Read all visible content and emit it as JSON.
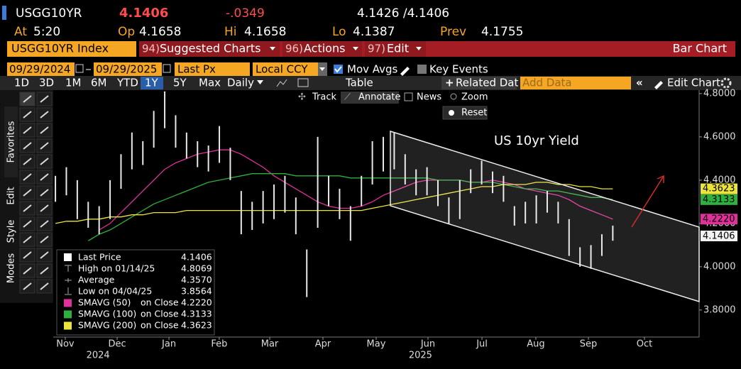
{
  "header": {
    "ticker": "USGG10YR",
    "last": "4.1406",
    "change": "-.0349",
    "bid_ask": "4.1426 /4.1406",
    "quote": [
      {
        "label": "At",
        "value": "5:20"
      },
      {
        "label": "Op",
        "value": "4.1658"
      },
      {
        "label": "Hi",
        "value": "4.1658"
      },
      {
        "label": "Lo",
        "value": "4.1387"
      },
      {
        "label": "Prev",
        "value": "4.1755"
      }
    ]
  },
  "menu": {
    "security": "USGG10YR Index",
    "items": [
      {
        "num": "94)",
        "label": "Suggested Charts"
      },
      {
        "num": "96)",
        "label": "Actions"
      },
      {
        "num": "97)",
        "label": "Edit"
      }
    ],
    "chart_type": "Bar Chart"
  },
  "controls": {
    "start_date": "09/29/2024",
    "end_date": "09/29/2025",
    "field": "Last Px",
    "currency": "Local CCY",
    "mov_avgs": "Mov Avgs",
    "key_events": "Key Events"
  },
  "toolbar": {
    "ranges": [
      "1D",
      "3D",
      "1M",
      "6M",
      "YTD",
      "1Y",
      "5Y",
      "Max"
    ],
    "active": 5,
    "period": "Daily",
    "table": "Table",
    "related": "Related Dat",
    "add_data": "Add Data",
    "edit_chart": "Edit Chart"
  },
  "chart_tools": {
    "track": "Track",
    "annotate": "Annotate",
    "news": "News",
    "zoom": "Zoom",
    "reset": "Reset"
  },
  "side_tabs": [
    "Favorites",
    "Edit",
    "Style",
    "Modes"
  ],
  "chart_data": {
    "type": "ohlc",
    "annotation": "US 10yr Yield",
    "color": "#e8e8e8",
    "x": [
      0,
      1,
      2,
      3,
      4,
      5,
      6,
      7,
      8,
      9,
      10,
      11,
      12,
      13,
      14,
      15,
      16,
      17,
      18,
      19,
      20,
      21,
      22,
      23,
      24,
      25,
      26,
      27,
      28,
      29,
      30,
      31,
      32,
      33,
      34,
      35,
      36,
      37,
      38,
      39,
      40,
      41,
      42,
      43,
      44,
      45,
      46,
      47,
      48,
      49,
      50,
      51
    ],
    "high": [
      4.42,
      4.46,
      4.4,
      4.3,
      4.28,
      4.4,
      4.52,
      4.62,
      4.58,
      4.72,
      4.81,
      4.7,
      4.62,
      4.58,
      4.56,
      4.65,
      4.55,
      4.35,
      4.3,
      4.35,
      4.38,
      4.42,
      4.32,
      4.08,
      4.6,
      4.42,
      4.36,
      4.28,
      4.42,
      4.58,
      4.6,
      4.62,
      4.52,
      4.45,
      4.46,
      4.4,
      4.32,
      4.4,
      4.45,
      4.49,
      4.44,
      4.42,
      4.28,
      4.3,
      4.33,
      4.35,
      4.3,
      4.22,
      4.09,
      4.1,
      4.15,
      4.19
    ],
    "low": [
      4.3,
      4.33,
      4.22,
      4.18,
      4.15,
      4.22,
      4.36,
      4.45,
      4.47,
      4.55,
      4.64,
      4.55,
      4.5,
      4.46,
      4.44,
      4.48,
      4.4,
      4.15,
      4.17,
      4.2,
      4.22,
      4.25,
      4.15,
      3.86,
      4.18,
      4.28,
      4.22,
      4.12,
      4.28,
      4.38,
      4.44,
      4.45,
      4.38,
      4.33,
      4.33,
      4.28,
      4.2,
      4.22,
      4.34,
      4.38,
      4.34,
      4.3,
      4.19,
      4.2,
      4.2,
      4.25,
      4.2,
      4.05,
      4.0,
      3.99,
      4.05,
      4.12
    ],
    "series": [
      {
        "name": "SMAVG (50)",
        "field": "on Close",
        "last": "4.2220",
        "color": "#e0309a",
        "values": [
          null,
          null,
          null,
          null,
          4.17,
          4.2,
          4.25,
          4.3,
          4.35,
          4.4,
          4.45,
          4.48,
          4.5,
          4.52,
          4.53,
          4.54,
          4.54,
          4.52,
          4.49,
          4.46,
          4.42,
          4.39,
          4.36,
          4.33,
          4.3,
          4.28,
          4.27,
          4.27,
          4.28,
          4.3,
          4.33,
          4.35,
          4.37,
          4.39,
          4.4,
          4.4,
          4.4,
          4.4,
          4.39,
          4.39,
          4.4,
          4.39,
          4.38,
          4.36,
          4.35,
          4.34,
          4.33,
          4.31,
          4.28,
          4.26,
          4.24,
          4.22
        ]
      },
      {
        "name": "SMAVG (100)",
        "field": "on Close",
        "last": "4.3133",
        "color": "#2eb03e",
        "values": [
          null,
          null,
          null,
          4.12,
          4.15,
          4.17,
          4.2,
          4.23,
          4.26,
          4.29,
          4.31,
          4.33,
          4.35,
          4.37,
          4.39,
          4.4,
          4.41,
          4.42,
          4.43,
          4.43,
          4.43,
          4.43,
          4.42,
          4.42,
          4.42,
          4.42,
          4.42,
          4.41,
          4.41,
          4.41,
          4.41,
          4.41,
          4.41,
          4.41,
          4.41,
          4.4,
          4.4,
          4.4,
          4.39,
          4.39,
          4.39,
          4.38,
          4.37,
          4.36,
          4.36,
          4.35,
          4.35,
          4.34,
          4.33,
          4.32,
          4.32,
          4.31
        ]
      },
      {
        "name": "SMAVG (200)",
        "field": "on Close",
        "last": "4.3623",
        "color": "#ece43a",
        "values": [
          4.2,
          4.21,
          4.21,
          4.22,
          4.22,
          4.23,
          4.23,
          4.24,
          4.24,
          4.25,
          4.25,
          4.25,
          4.26,
          4.26,
          4.26,
          4.26,
          4.26,
          4.26,
          4.26,
          4.26,
          4.26,
          4.26,
          4.26,
          4.26,
          4.26,
          4.26,
          4.26,
          4.26,
          4.26,
          4.27,
          4.28,
          4.29,
          4.3,
          4.31,
          4.32,
          4.33,
          4.34,
          4.35,
          4.36,
          4.37,
          4.37,
          4.38,
          4.38,
          4.38,
          4.39,
          4.39,
          4.38,
          4.38,
          4.37,
          4.37,
          4.36,
          4.36
        ]
      }
    ],
    "legend_stats": [
      {
        "name": "Last Price",
        "value": "4.1406"
      },
      {
        "name": "High on 01/14/25",
        "value": "4.8069"
      },
      {
        "name": "Average",
        "value": "4.3570"
      },
      {
        "name": "Low on 04/04/25",
        "value": "3.8564"
      }
    ],
    "xlim": [
      -0.2,
      58.9
    ],
    "ylim": [
      3.675,
      4.816
    ],
    "yticks": [
      {
        "value": 3.8,
        "label": "3.8000"
      },
      {
        "value": 4.0,
        "label": "4.0000"
      },
      {
        "value": 4.2,
        "label": "4.2000"
      },
      {
        "value": 4.4,
        "label": "4.4000"
      },
      {
        "value": 4.6,
        "label": "4.6000"
      },
      {
        "value": 4.8,
        "label": "4.8000"
      }
    ],
    "xticks": [
      {
        "value": 0.9,
        "label": "Nov"
      },
      {
        "value": 5.65,
        "label": "Dec"
      },
      {
        "value": 10.39,
        "label": "Jan"
      },
      {
        "value": 14.99,
        "label": "Feb"
      },
      {
        "value": 19.61,
        "label": "Mar"
      },
      {
        "value": 24.48,
        "label": "Apr"
      },
      {
        "value": 29.35,
        "label": "May"
      },
      {
        "value": 34.09,
        "label": "Jun"
      },
      {
        "value": 39.03,
        "label": "Jul"
      },
      {
        "value": 43.96,
        "label": "Aug"
      },
      {
        "value": 48.77,
        "label": "Sep"
      },
      {
        "value": 53.9,
        "label": "Oct"
      }
    ],
    "year_labels": [
      {
        "value": 3.9,
        "label": "2024"
      },
      {
        "value": 33.4,
        "label": "2025"
      }
    ]
  }
}
